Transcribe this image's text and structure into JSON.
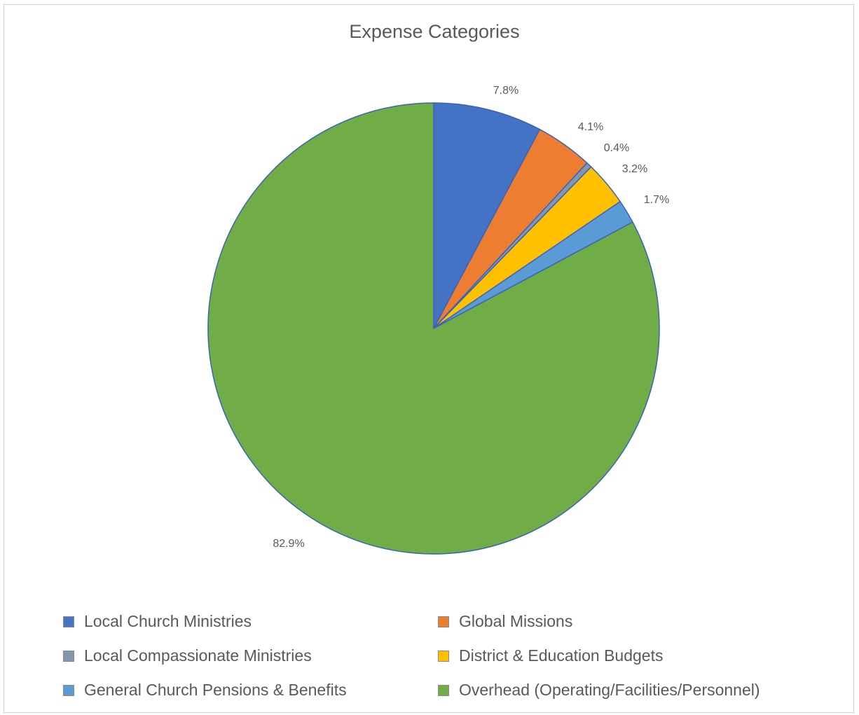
{
  "chart_data": {
    "type": "pie",
    "title": "Expense Categories",
    "slices": [
      {
        "label": "Local Church Ministries",
        "value": 7.8,
        "display": "7.8%",
        "color": "#4472C4"
      },
      {
        "label": "Global Missions",
        "value": 4.1,
        "display": "4.1%",
        "color": "#ED7D31"
      },
      {
        "label": "Local Compassionate Ministries",
        "value": 0.4,
        "display": "0.4%",
        "color": "#8497B0"
      },
      {
        "label": "District & Education Budgets",
        "value": 3.2,
        "display": "3.2%",
        "color": "#FFC000"
      },
      {
        "label": "General Church Pensions & Benefits",
        "value": 1.7,
        "display": "1.7%",
        "color": "#5B9BD5"
      },
      {
        "label": "Overhead (Operating/Facilities/Personnel)",
        "value": 82.9,
        "display": "82.9%",
        "color": "#70AD47"
      }
    ],
    "legend_position": "bottom",
    "start_angle": "12 o'clock",
    "direction": "clockwise"
  }
}
